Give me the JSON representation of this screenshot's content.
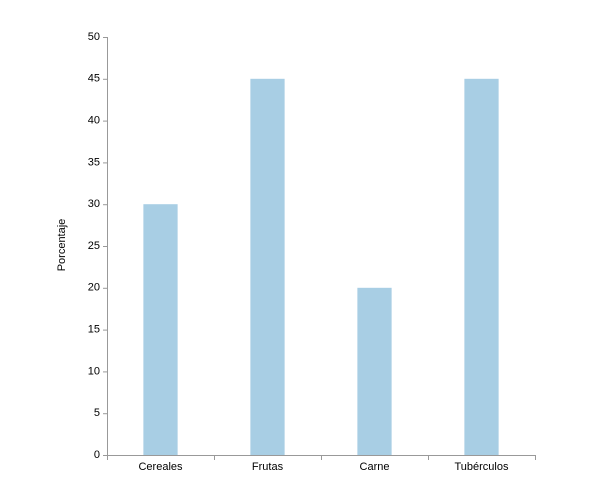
{
  "chart_data": {
    "type": "bar",
    "y_label": "Porcentaje",
    "categories": [
      "Cereales",
      "Frutas",
      "Carne",
      "Tubérculos"
    ],
    "values": [
      30,
      45,
      20,
      45
    ],
    "color": "#a8cee4",
    "ylim": [
      0,
      50
    ],
    "yticks": [
      0,
      5,
      10,
      15,
      20,
      25,
      30,
      35,
      40,
      45,
      50
    ],
    "grid": false
  }
}
